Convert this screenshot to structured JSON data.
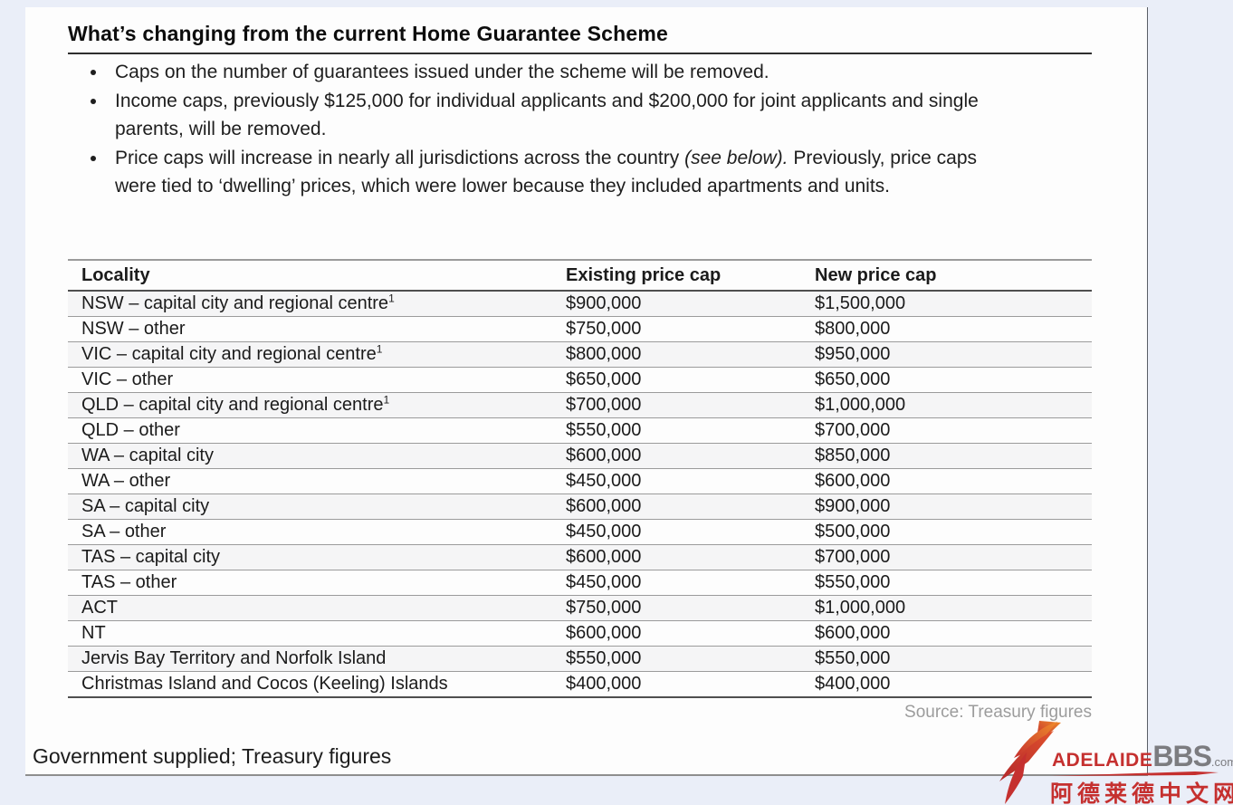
{
  "page": {
    "title": "What’s changing from the current Home Guarantee Scheme",
    "bullets": [
      {
        "text": "Caps on the number of guarantees issued under the scheme will be removed."
      },
      {
        "text": "Income caps, previously $125,000 for individual applicants and $200,000 for joint applicants and single parents, will be removed."
      },
      {
        "text_before": "Price caps will increase in nearly all jurisdictions across the country ",
        "italic": "(see below).",
        "text_after": " Previously, price caps were tied to ‘dwelling’ prices, which were lower because they included apartments and units."
      }
    ]
  },
  "table": {
    "columns": [
      "Locality",
      "Existing price cap",
      "New price cap"
    ],
    "rows": [
      {
        "locality": "NSW – capital city and regional centre",
        "footnote": "1",
        "existing": "$900,000",
        "new": "$1,500,000"
      },
      {
        "locality": "NSW – other",
        "footnote": "",
        "existing": "$750,000",
        "new": "$800,000"
      },
      {
        "locality": "VIC – capital city and regional centre",
        "footnote": "1",
        "existing": "$800,000",
        "new": "$950,000"
      },
      {
        "locality": "VIC – other",
        "footnote": "",
        "existing": "$650,000",
        "new": "$650,000"
      },
      {
        "locality": "QLD – capital city and regional centre",
        "footnote": "1",
        "existing": "$700,000",
        "new": "$1,000,000"
      },
      {
        "locality": "QLD – other",
        "footnote": "",
        "existing": "$550,000",
        "new": "$700,000"
      },
      {
        "locality": "WA – capital city",
        "footnote": "",
        "existing": "$600,000",
        "new": "$850,000"
      },
      {
        "locality": "WA – other",
        "footnote": "",
        "existing": "$450,000",
        "new": "$600,000"
      },
      {
        "locality": "SA – capital city",
        "footnote": "",
        "existing": "$600,000",
        "new": "$900,000"
      },
      {
        "locality": "SA – other",
        "footnote": "",
        "existing": "$450,000",
        "new": "$500,000"
      },
      {
        "locality": "TAS – capital city",
        "footnote": "",
        "existing": "$600,000",
        "new": "$700,000"
      },
      {
        "locality": "TAS – other",
        "footnote": "",
        "existing": "$450,000",
        "new": "$550,000"
      },
      {
        "locality": "ACT",
        "footnote": "",
        "existing": "$750,000",
        "new": "$1,000,000"
      },
      {
        "locality": "NT",
        "footnote": "",
        "existing": "$600,000",
        "new": "$600,000"
      },
      {
        "locality": "Jervis Bay Territory and Norfolk Island",
        "footnote": "",
        "existing": "$550,000",
        "new": "$550,000"
      },
      {
        "locality": "Christmas Island and Cocos (Keeling) Islands",
        "footnote": "",
        "existing": "$400,000",
        "new": "$400,000"
      }
    ],
    "source": "Source: Treasury figures"
  },
  "footer": {
    "caption": "Government supplied; Treasury figures"
  },
  "logo": {
    "brand_first": "Adelaide",
    "brand_second": "BBS",
    "brand_tld": ".com",
    "chinese": "阿德莱德中文网",
    "accent_color": "#c5302f",
    "gray_color": "#7c7c80"
  }
}
